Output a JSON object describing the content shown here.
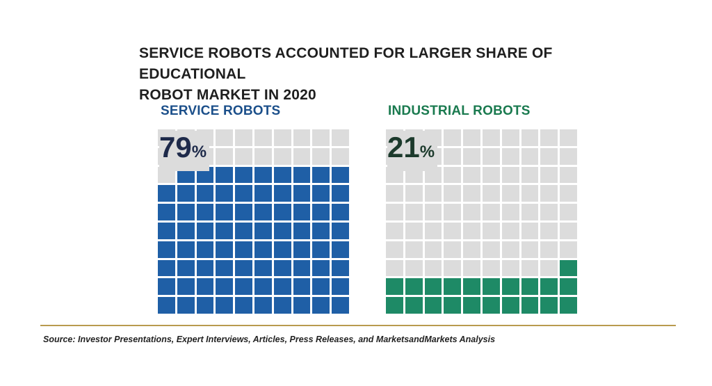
{
  "title_lines": [
    "SERVICE ROBOTS ACCOUNTED FOR LARGER SHARE OF EDUCATIONAL",
    "ROBOT MARKET IN 2020"
  ],
  "source": "Source: Investor Presentations, Expert Interviews, Articles, Press Releases, and MarketsandMarkets Analysis",
  "colors": {
    "empty_cell": "#dcdcdc",
    "service": "#1f5fa6",
    "service_label": "#1b4f8a",
    "industrial": "#1e8a66",
    "industrial_label": "#1a7a4f",
    "rule": "#b89a4e"
  },
  "chart_data": {
    "type": "waffle",
    "grid": {
      "rows": 10,
      "cols": 10
    },
    "series": [
      {
        "name": "SERVICE ROBOTS",
        "value": 79,
        "value_label": "79",
        "unit": "%"
      },
      {
        "name": "INDUSTRIAL ROBOTS",
        "value": 21,
        "value_label": "21",
        "unit": "%"
      }
    ]
  }
}
